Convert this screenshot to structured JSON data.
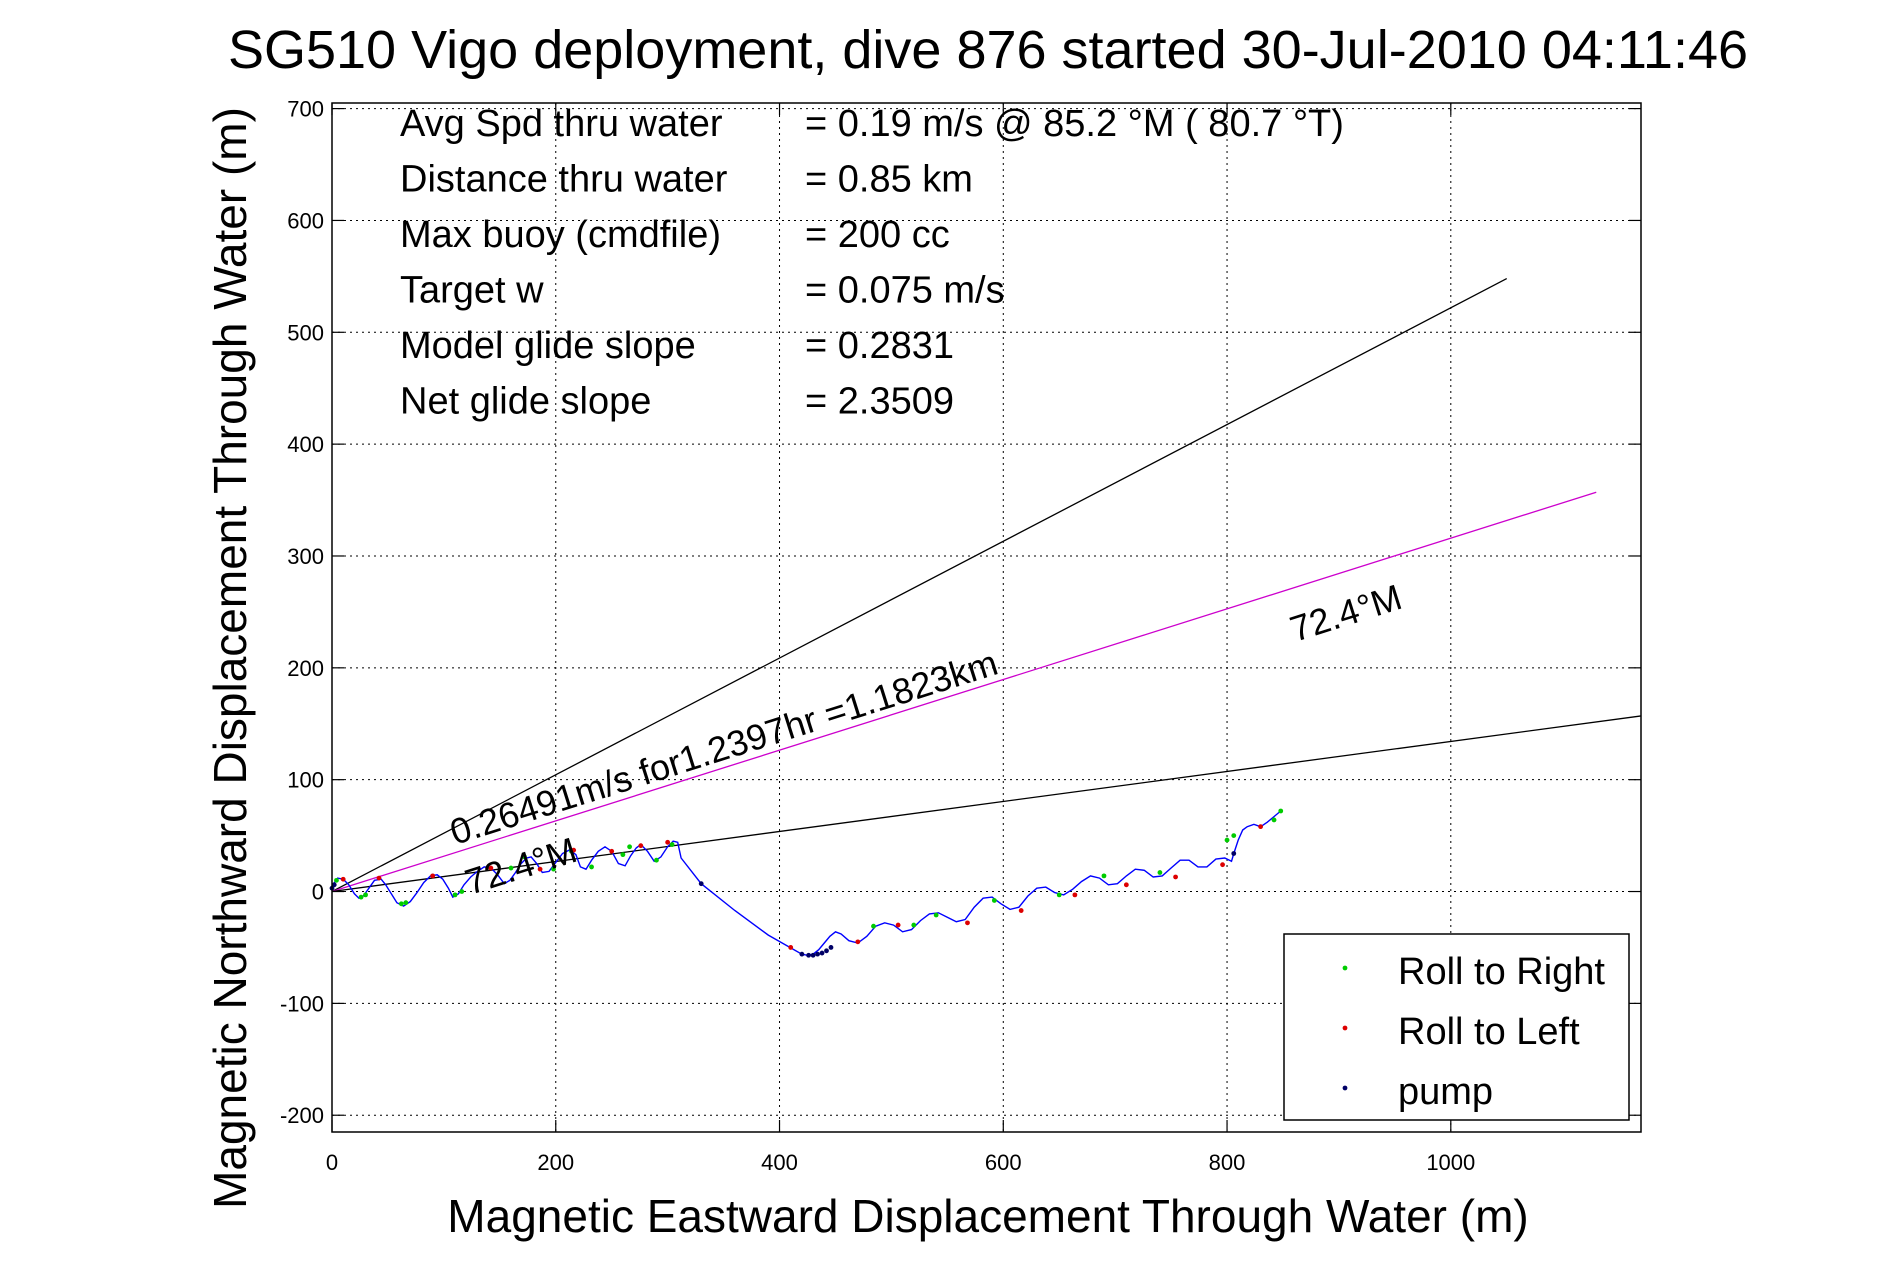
{
  "chart_data": {
    "type": "scatter",
    "title": "SG510 Vigo deployment, dive 876 started 30-Jul-2010 04:11:46",
    "xlabel": "Magnetic Eastward Displacement Through Water (m)",
    "ylabel": "Magnetic Northward Displacement Through Water (m)",
    "xlim": [
      0,
      1170
    ],
    "ylim": [
      -215,
      705
    ],
    "xticks": [
      0,
      200,
      400,
      600,
      800,
      1000
    ],
    "yticks": [
      -200,
      -100,
      0,
      100,
      200,
      300,
      400,
      500,
      600,
      700
    ],
    "grid": true,
    "legend_position": "bottom-right",
    "stats_lines": [
      {
        "label": "Avg Spd thru water",
        "value": "=  0.19 m/s @  85.2 °M ( 80.7 °T)"
      },
      {
        "label": "Distance thru water",
        "value": "=  0.85 km"
      },
      {
        "label": "Max buoy (cmdfile)",
        "value": "= 200 cc"
      },
      {
        "label": "Target w",
        "value": "= 0.075 m/s"
      },
      {
        "label": "Model glide slope",
        "value": "= 0.2831"
      },
      {
        "label": "Net glide slope",
        "value": "= 2.3509"
      }
    ],
    "annotations": {
      "current_label": "0.26491m/s for1.2397hr =1.1823km",
      "heading_near": "72.4°M",
      "heading_far": "72.4°M"
    },
    "reference_lines": [
      {
        "name": "upper-bound-line",
        "x": [
          0,
          1050
        ],
        "y": [
          0,
          548
        ],
        "color": "#000000"
      },
      {
        "name": "heading-line",
        "x": [
          0,
          1130
        ],
        "y": [
          0,
          357
        ],
        "color": "#cc00cc"
      },
      {
        "name": "lower-bound-line",
        "x": [
          0,
          1170
        ],
        "y": [
          0,
          157
        ],
        "color": "#000000"
      }
    ],
    "track": {
      "color": "#0000ff",
      "x": [
        0,
        5,
        10,
        15,
        20,
        24,
        28,
        33,
        38,
        44,
        48,
        53,
        58,
        64,
        70,
        76,
        82,
        88,
        94,
        99,
        104,
        108,
        113,
        118,
        124,
        130,
        136,
        142,
        148,
        154,
        159,
        164,
        169,
        174,
        178,
        183,
        188,
        194,
        200,
        206,
        212,
        218,
        222,
        227,
        232,
        238,
        244,
        250,
        256,
        262,
        267,
        272,
        276,
        282,
        288,
        294,
        300,
        305,
        309,
        312,
        330,
        360,
        390,
        420,
        425,
        430,
        435,
        440,
        445,
        450,
        455,
        462,
        470,
        478,
        486,
        494,
        502,
        510,
        518,
        526,
        534,
        542,
        550,
        558,
        566,
        574,
        582,
        590,
        598,
        606,
        614,
        622,
        630,
        638,
        646,
        654,
        662,
        670,
        678,
        686,
        694,
        702,
        710,
        718,
        726,
        734,
        742,
        750,
        758,
        766,
        774,
        782,
        790,
        798,
        804,
        806,
        810,
        814,
        818,
        824,
        830,
        836,
        842,
        848
      ],
      "y": [
        5,
        12,
        11,
        6,
        -2,
        -6,
        -4,
        3,
        10,
        11,
        6,
        -2,
        -10,
        -13,
        -9,
        -1,
        8,
        14,
        15,
        11,
        3,
        -5,
        -2,
        6,
        13,
        18,
        22,
        21,
        15,
        7,
        10,
        17,
        25,
        30,
        31,
        25,
        17,
        18,
        26,
        34,
        37,
        33,
        22,
        20,
        28,
        36,
        40,
        36,
        25,
        23,
        32,
        39,
        42,
        36,
        27,
        31,
        40,
        45,
        44,
        30,
        7,
        -17,
        -39,
        -56,
        -57,
        -56,
        -52,
        -46,
        -40,
        -36,
        -38,
        -44,
        -46,
        -40,
        -31,
        -28,
        -30,
        -36,
        -34,
        -26,
        -20,
        -19,
        -23,
        -27,
        -25,
        -14,
        -6,
        -5,
        -11,
        -16,
        -14,
        -4,
        3,
        4,
        -1,
        -3,
        2,
        9,
        14,
        12,
        6,
        7,
        14,
        20,
        19,
        13,
        14,
        21,
        28,
        28,
        22,
        22,
        29,
        30,
        27,
        34,
        46,
        55,
        58,
        60,
        58,
        62,
        67,
        72
      ]
    },
    "series": [
      {
        "name": "Roll to Right",
        "color": "#00cc00",
        "x": [
          4,
          26,
          30,
          62,
          66,
          110,
          116,
          160,
          172,
          198,
          214,
          232,
          260,
          266,
          290,
          304,
          484,
          520,
          540,
          592,
          650,
          690,
          740,
          800,
          806,
          842,
          848
        ],
        "y": [
          10,
          -5,
          -3,
          -11,
          -10,
          -3,
          0,
          21,
          31,
          20,
          36,
          22,
          33,
          40,
          28,
          42,
          -31,
          -30,
          -21,
          -8,
          -3,
          14,
          17,
          46,
          50,
          64,
          72
        ]
      },
      {
        "name": "Roll to Left",
        "color": "#dd0000",
        "x": [
          10,
          42,
          90,
          142,
          186,
          216,
          250,
          276,
          300,
          410,
          470,
          506,
          568,
          616,
          664,
          710,
          754,
          796,
          830
        ],
        "y": [
          11,
          12,
          14,
          21,
          20,
          37,
          36,
          41,
          44,
          -50,
          -45,
          -30,
          -28,
          -17,
          -3,
          6,
          13,
          24,
          58
        ]
      },
      {
        "name": "pump",
        "color": "#000066",
        "x": [
          0,
          2,
          330,
          420,
          426,
          430,
          434,
          438,
          442,
          446,
          806
        ],
        "y": [
          3,
          6,
          7,
          -56,
          -57,
          -57,
          -56,
          -55,
          -53,
          -50,
          34
        ]
      }
    ]
  }
}
